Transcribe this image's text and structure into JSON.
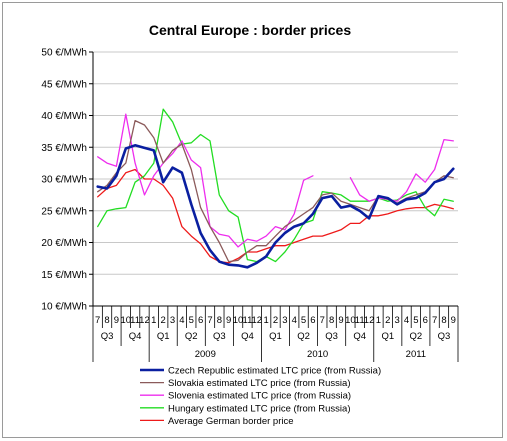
{
  "chart_data": {
    "type": "line",
    "title": "Central Europe : border prices",
    "y_unit": "€/MWh",
    "ylim": [
      10,
      50
    ],
    "y_ticks": [
      "10 €/MWh",
      "15 €/MWh",
      "20 €/MWh",
      "25 €/MWh",
      "30 €/MWh",
      "35 €/MWh",
      "40 €/MWh",
      "45 €/MWh",
      "50 €/MWh"
    ],
    "grid": true,
    "legend_position": "bottom",
    "month_labels": [
      "7",
      "8",
      "9",
      "10",
      "11",
      "12",
      "1",
      "2",
      "3",
      "4",
      "5",
      "6",
      "7",
      "8",
      "9",
      "10",
      "11",
      "12",
      "1",
      "2",
      "3",
      "4",
      "5",
      "6",
      "7",
      "8",
      "9",
      "10",
      "11",
      "12",
      "1",
      "2",
      "3",
      "4",
      "5",
      "6",
      "7",
      "8",
      "9"
    ],
    "quarter_labels": [
      "Q3",
      "Q4",
      "Q1",
      "Q2",
      "Q3",
      "Q4",
      "Q1",
      "Q2",
      "Q3",
      "Q4",
      "Q1",
      "Q2",
      "Q3"
    ],
    "year_labels": [
      "2009",
      "2010",
      "2011"
    ],
    "series": [
      {
        "name": "Czech Republic estimated LTC price (from Russia)",
        "color": "#0a1fa0",
        "width": 2.6,
        "values": [
          28.8,
          28.5,
          30.5,
          34.8,
          35.3,
          34.9,
          34.5,
          29.5,
          31.8,
          31.0,
          26.0,
          21.5,
          18.8,
          17.0,
          16.5,
          16.4,
          16.1,
          16.8,
          17.8,
          20.0,
          21.5,
          22.5,
          23.0,
          24.5,
          27.0,
          27.3,
          25.5,
          25.8,
          25.0,
          23.8,
          27.3,
          27.0,
          26.0,
          26.8,
          27.0,
          27.8,
          29.5,
          30.0,
          31.6
        ]
      },
      {
        "name": "Slovakia estimated LTC price (from Russia)",
        "color": "#8b5a5a",
        "width": 1.3,
        "values": [
          28.0,
          29.0,
          31.0,
          32.5,
          39.2,
          38.5,
          36.5,
          32.5,
          34.5,
          35.5,
          31.5,
          25.5,
          22.5,
          20.0,
          17.0,
          17.2,
          18.5,
          19.5,
          19.5,
          21.0,
          22.5,
          23.5,
          24.5,
          25.5,
          27.5,
          27.8,
          26.5,
          26.0,
          25.5,
          25.0,
          27.3,
          26.8,
          26.2,
          27.0,
          27.5,
          28.0,
          29.5,
          30.5,
          30.2
        ]
      },
      {
        "name": "Slovenia estimated LTC price (from Russia)",
        "color": "#ee2eee",
        "width": 1.3,
        "values": [
          33.5,
          32.5,
          32.0,
          40.2,
          32.5,
          27.5,
          30.5,
          32.5,
          34.0,
          36.0,
          33.0,
          31.8,
          22.5,
          21.3,
          21.0,
          19.3,
          20.5,
          20.2,
          21.0,
          22.5,
          22.0,
          24.5,
          29.8,
          30.5,
          null,
          null,
          null,
          30.2,
          27.5,
          26.5,
          27.0,
          26.8,
          26.5,
          28.0,
          30.8,
          29.5,
          31.5,
          36.2,
          36.0
        ]
      },
      {
        "name": "Hungary estimated LTC price (from Russia)",
        "color": "#22dd22",
        "width": 1.3,
        "values": [
          22.5,
          25.0,
          25.3,
          25.5,
          29.5,
          30.5,
          32.5,
          41.0,
          39.0,
          35.5,
          35.7,
          37.0,
          36.0,
          27.5,
          25.0,
          24.0,
          17.3,
          17.0,
          17.8,
          17.0,
          18.5,
          20.5,
          23.0,
          23.5,
          28.0,
          27.8,
          27.5,
          26.5,
          26.5,
          26.5,
          27.0,
          26.5,
          26.7,
          27.5,
          28.0,
          25.5,
          24.2,
          26.8,
          26.5
        ]
      },
      {
        "name": "Average German border price",
        "color": "#ee1a1a",
        "width": 1.3,
        "values": [
          27.2,
          28.5,
          29.0,
          31.0,
          31.5,
          30.0,
          30.0,
          29.0,
          27.0,
          22.5,
          21.0,
          19.8,
          17.8,
          17.0,
          16.8,
          17.5,
          18.5,
          18.5,
          19.0,
          19.5,
          19.5,
          20.0,
          20.5,
          21.0,
          21.0,
          21.5,
          22.0,
          23.0,
          23.0,
          24.2,
          24.2,
          24.5,
          25.0,
          25.3,
          25.5,
          25.5,
          26.0,
          25.7,
          25.3
        ]
      }
    ]
  }
}
